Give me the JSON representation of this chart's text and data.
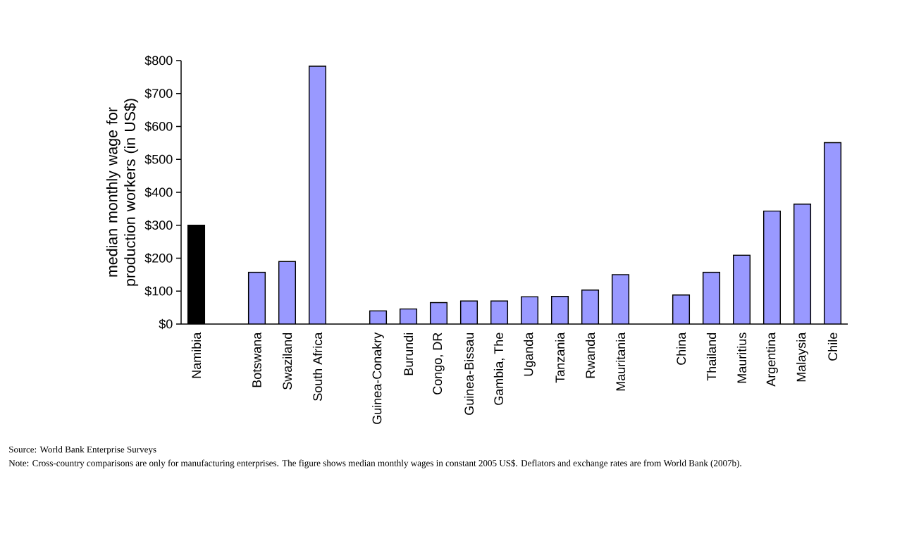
{
  "chart_data": {
    "type": "bar",
    "ylabel": "median monthly wage for production workers (in US$)",
    "categories": [
      "Namibia",
      null,
      "Botswana",
      "Swaziland",
      "South Africa",
      null,
      "Guinea-Conakry",
      "Burundi",
      "Congo, DR",
      "Guinea-Bissau",
      "Gambia, The",
      "Uganda",
      "Tanzania",
      "Rwanda",
      "Mauritania",
      null,
      "China",
      "Thailand",
      "Mauritius",
      "Argentina",
      "Malaysia",
      "Chile"
    ],
    "values": [
      300,
      null,
      157,
      190,
      783,
      null,
      40,
      46,
      65,
      70,
      70,
      83,
      84,
      103,
      150,
      null,
      88,
      157,
      209,
      343,
      364,
      551
    ],
    "colors": [
      "#000000",
      null,
      "#9999ff",
      "#9999ff",
      "#9999ff",
      null,
      "#9999ff",
      "#9999ff",
      "#9999ff",
      "#9999ff",
      "#9999ff",
      "#9999ff",
      "#9999ff",
      "#9999ff",
      "#9999ff",
      null,
      "#9999ff",
      "#9999ff",
      "#9999ff",
      "#9999ff",
      "#9999ff",
      "#9999ff"
    ],
    "ylim": [
      0,
      800
    ],
    "yticks": [
      {
        "value": 0,
        "label": "$0"
      },
      {
        "value": 100,
        "label": "$100"
      },
      {
        "value": 200,
        "label": "$200"
      },
      {
        "value": 300,
        "label": "$300"
      },
      {
        "value": 400,
        "label": "$400"
      },
      {
        "value": 500,
        "label": "$500"
      },
      {
        "value": 600,
        "label": "$600"
      },
      {
        "value": 700,
        "label": "$700"
      },
      {
        "value": 800,
        "label": "$800"
      }
    ],
    "annotations": [
      "Source: World Bank Enterprise Surveys",
      "Note: Cross-country comparisons are only for manufacturing enterprises.  The figure shows median monthly wages in constant 2005 US$.  Deflators and exchange rates are from World Bank (2007b)."
    ]
  }
}
